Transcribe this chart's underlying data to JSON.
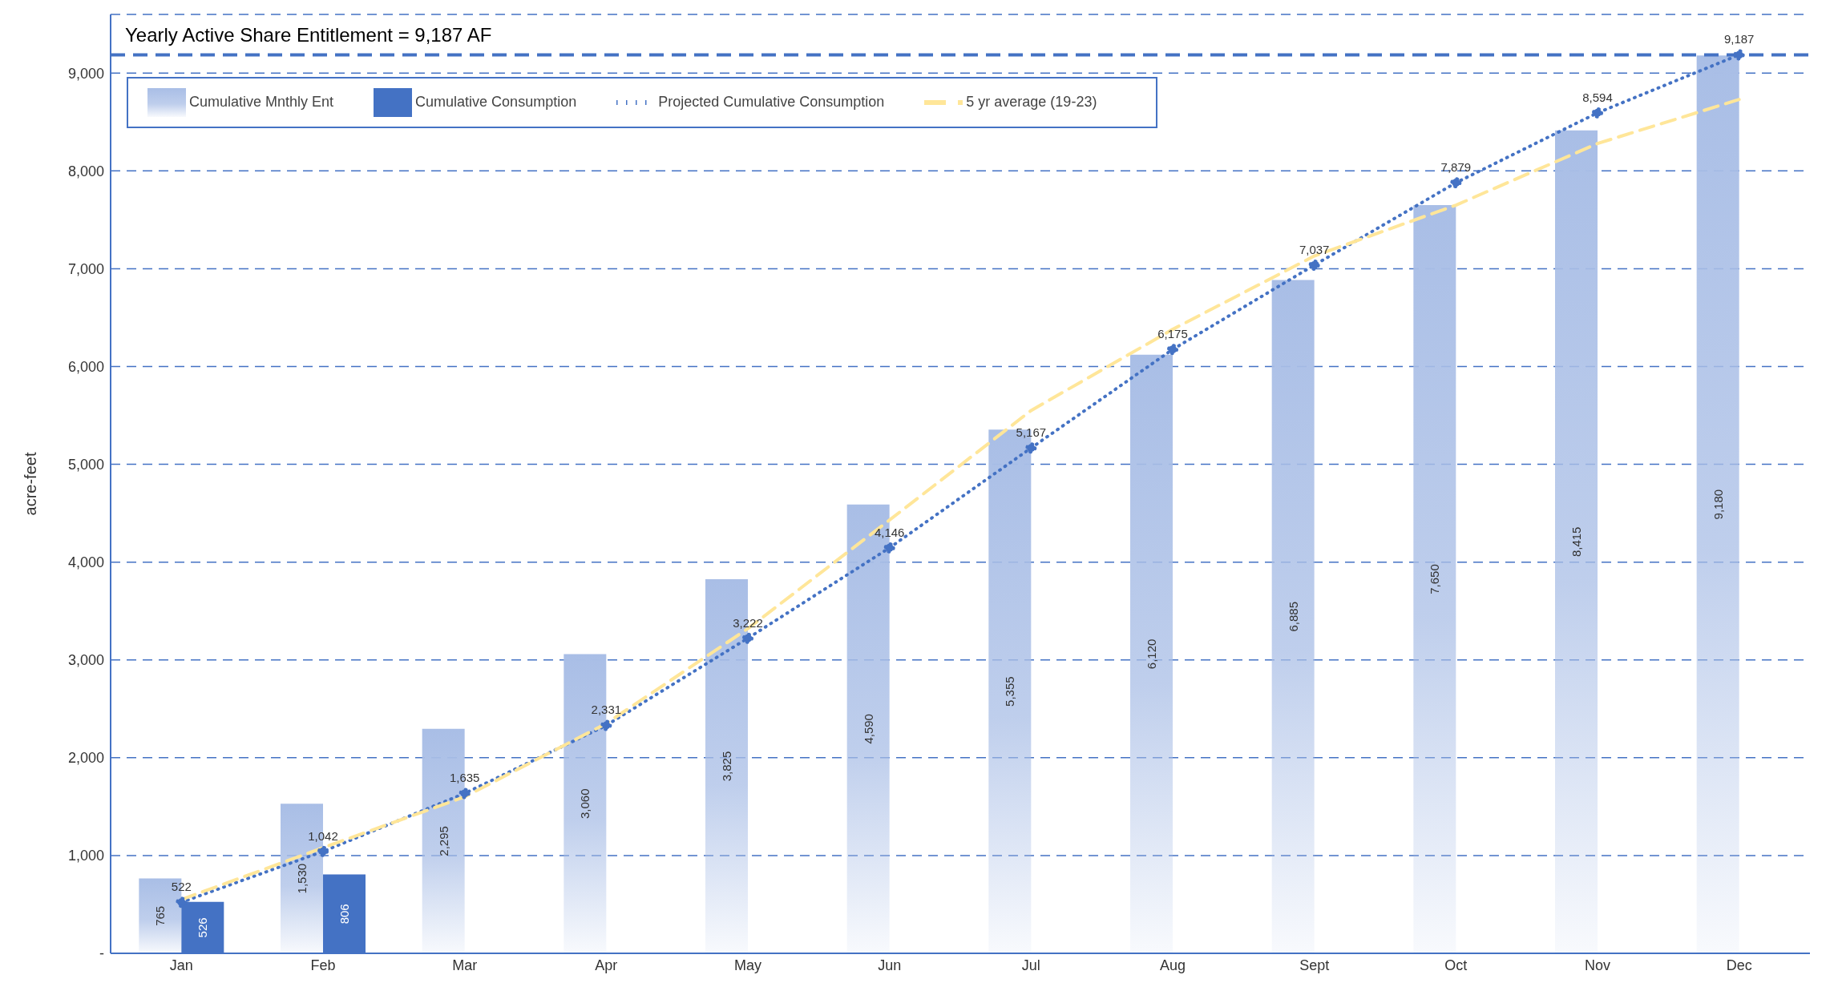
{
  "chart_data": {
    "type": "bar",
    "ylabel": "acre-feet",
    "categories": [
      "Jan",
      "Feb",
      "Mar",
      "Apr",
      "May",
      "Jun",
      "Jul",
      "Aug",
      "Sept",
      "Oct",
      "Nov",
      "Dec"
    ],
    "series": [
      {
        "name": "Cumulative Mnthly Ent",
        "color": "#a9bee6",
        "values": [
          765,
          1530,
          2295,
          3060,
          3825,
          4590,
          5355,
          6120,
          6885,
          7650,
          8415,
          9180
        ],
        "value_labels": [
          "765",
          "1,530",
          "2,295",
          "3,060",
          "3,825",
          "4,590",
          "5,355",
          "6,120",
          "6,885",
          "7,650",
          "8,415",
          "9,180"
        ]
      },
      {
        "name": "Cumulative Consumption",
        "color": "#4472c4",
        "values": [
          526,
          806,
          null,
          null,
          null,
          null,
          null,
          null,
          null,
          null,
          null,
          null
        ],
        "value_labels": [
          "526",
          "806",
          null,
          null,
          null,
          null,
          null,
          null,
          null,
          null,
          null,
          null
        ]
      },
      {
        "name": "Projected Cumulative Consumption",
        "type": "line",
        "color": "#4472c4",
        "marker": "circle",
        "line_style": "dotted",
        "values": [
          522,
          1042,
          1635,
          2331,
          3222,
          4146,
          5167,
          6175,
          7037,
          7879,
          8594,
          9187
        ],
        "value_labels": [
          "522",
          "1,042",
          "1,635",
          "2,331",
          "3,222",
          "4,146",
          "5,167",
          "6,175",
          "7,037",
          "7,879",
          "8,594",
          "9,187"
        ]
      },
      {
        "name": "5 yr average (19-23)",
        "type": "line",
        "color": "#ffe699",
        "marker": "none",
        "line_style": "dashed",
        "values": [
          550,
          1080,
          1600,
          2350,
          3320,
          4430,
          5550,
          6380,
          7130,
          7650,
          8280,
          8730
        ]
      }
    ],
    "ylim": [
      0,
      9600
    ],
    "yticks": [
      {
        "value": 0,
        "label": "-"
      },
      {
        "value": 1000,
        "label": "1,000"
      },
      {
        "value": 2000,
        "label": "2,000"
      },
      {
        "value": 3000,
        "label": "3,000"
      },
      {
        "value": 4000,
        "label": "4,000"
      },
      {
        "value": 5000,
        "label": "5,000"
      },
      {
        "value": 6000,
        "label": "6,000"
      },
      {
        "value": 7000,
        "label": "7,000"
      },
      {
        "value": 8000,
        "label": "8,000"
      },
      {
        "value": 9000,
        "label": "9,000"
      }
    ],
    "ref_lines": [
      {
        "axis": "y",
        "value": 9187,
        "label": "Yearly Active Share Entitlement = 9,187 AF",
        "color": "#4472c4",
        "line_style": "dashed"
      }
    ],
    "grid": "y",
    "legend": "top left"
  }
}
